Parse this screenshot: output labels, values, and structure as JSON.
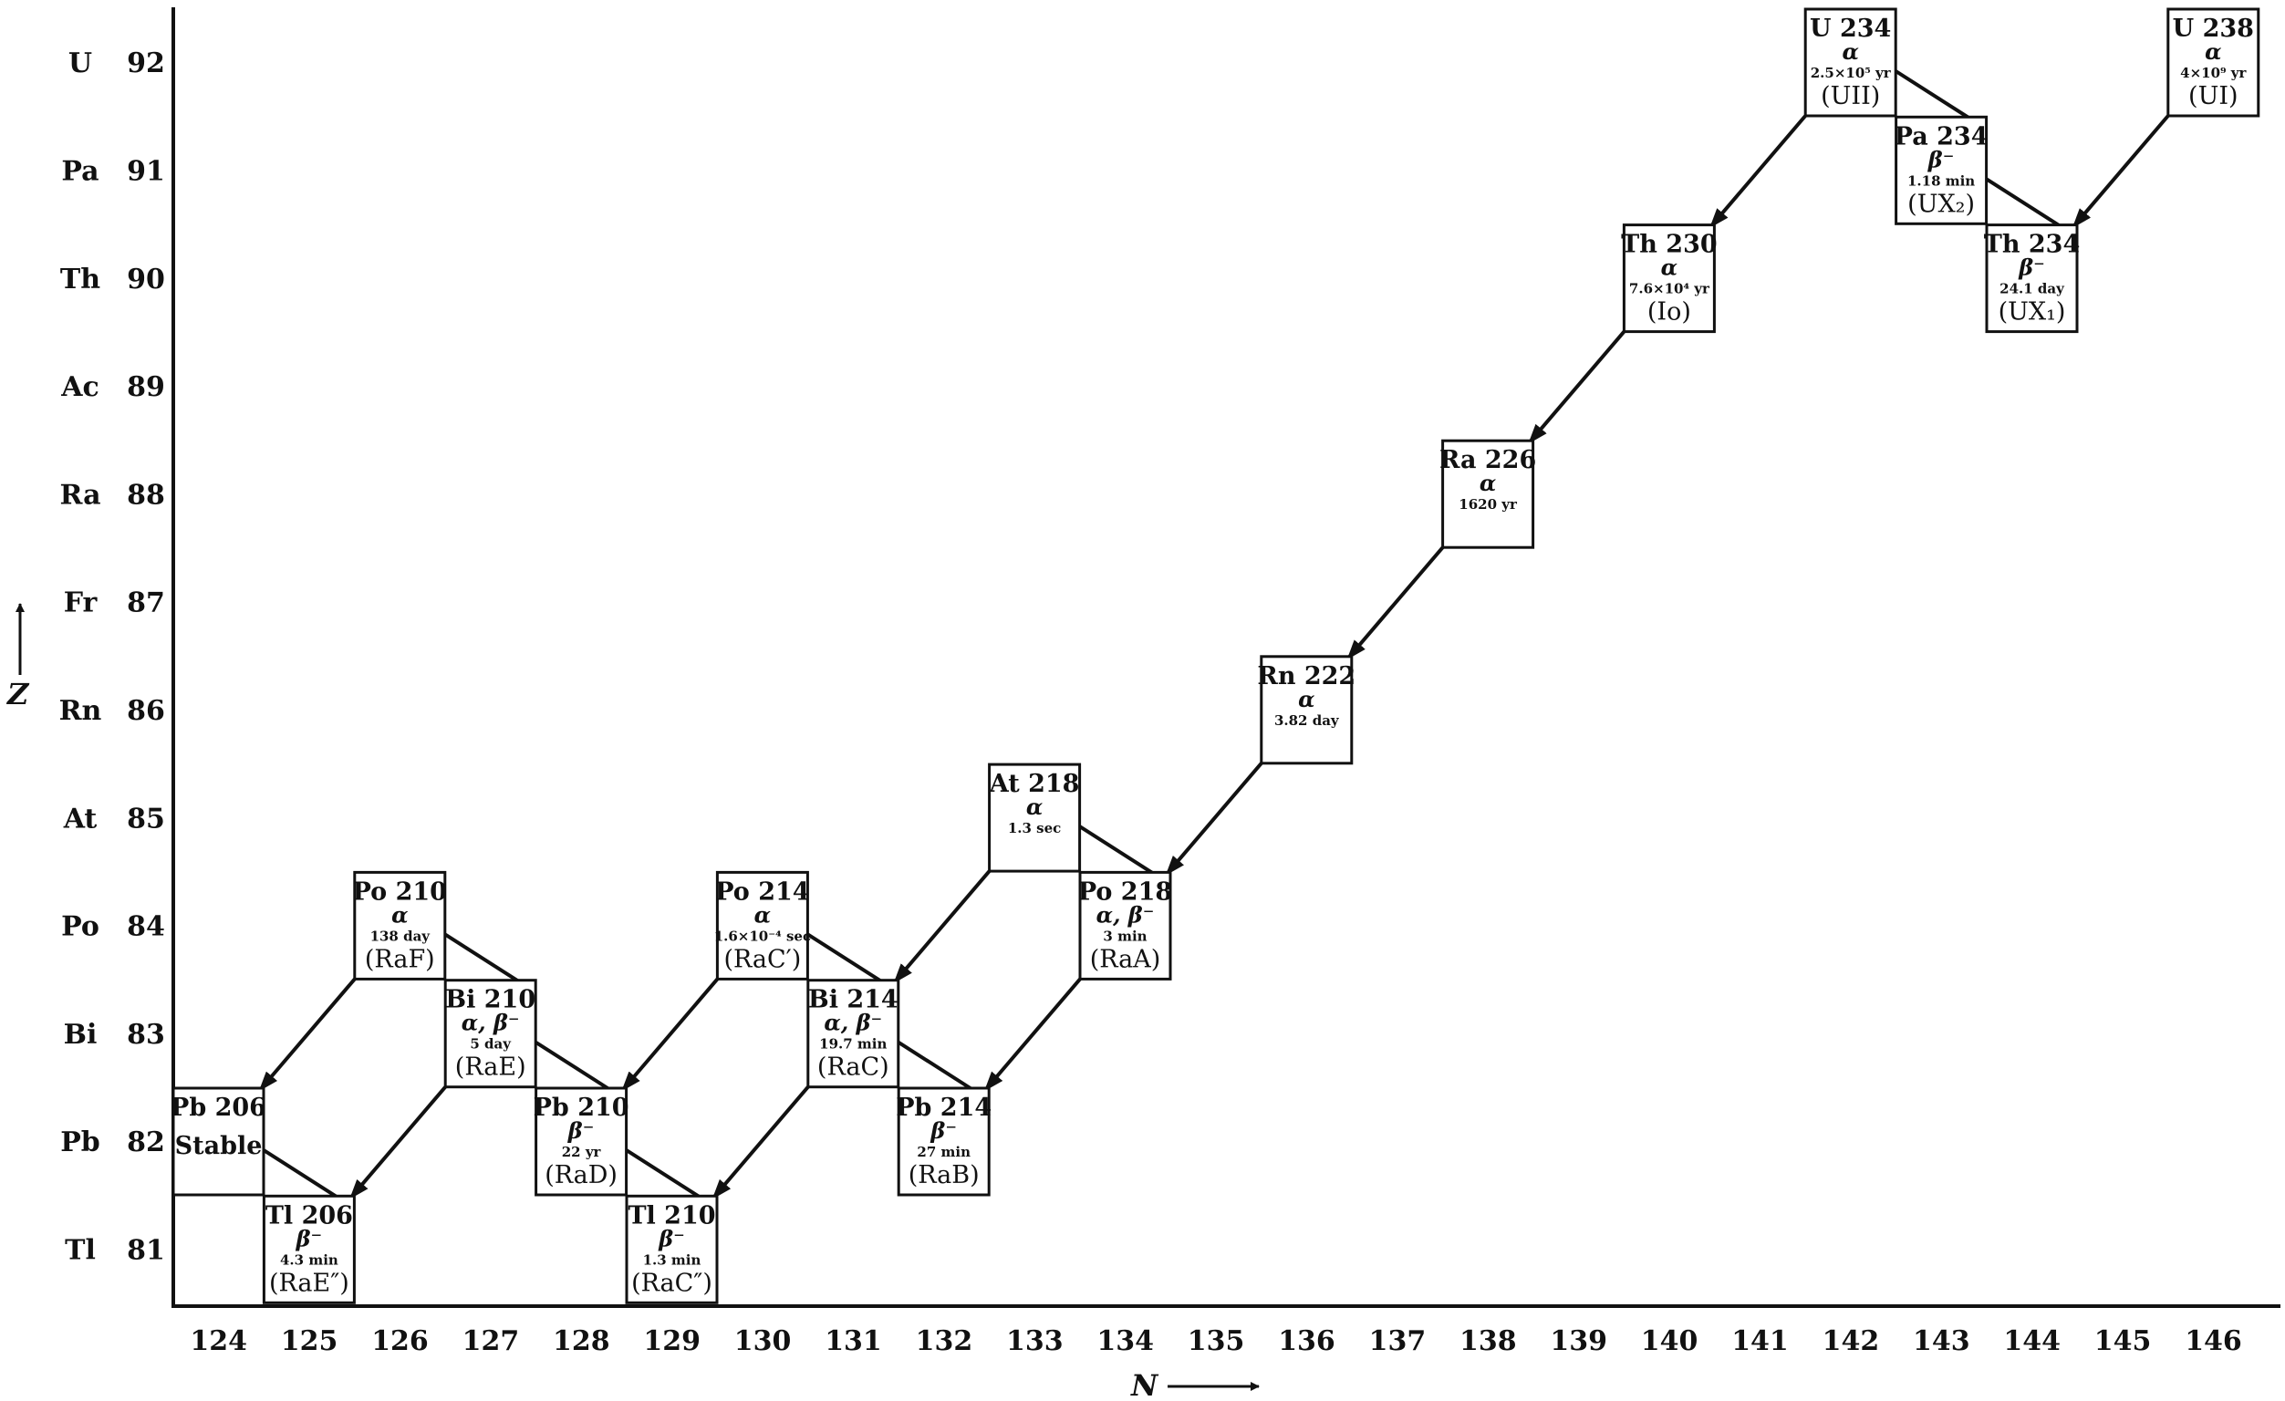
{
  "z_axis": {
    "label": "Z",
    "rows": [
      {
        "symbol": "U",
        "z": 92
      },
      {
        "symbol": "Pa",
        "z": 91
      },
      {
        "symbol": "Th",
        "z": 90
      },
      {
        "symbol": "Ac",
        "z": 89
      },
      {
        "symbol": "Ra",
        "z": 88
      },
      {
        "symbol": "Fr",
        "z": 87
      },
      {
        "symbol": "Rn",
        "z": 86
      },
      {
        "symbol": "At",
        "z": 85
      },
      {
        "symbol": "Po",
        "z": 84
      },
      {
        "symbol": "Bi",
        "z": 83
      },
      {
        "symbol": "Pb",
        "z": 82
      },
      {
        "symbol": "Tl",
        "z": 81
      }
    ]
  },
  "n_axis": {
    "label": "N",
    "ticks": [
      124,
      125,
      126,
      127,
      128,
      129,
      130,
      131,
      132,
      133,
      134,
      135,
      136,
      137,
      138,
      139,
      140,
      141,
      142,
      143,
      144,
      145,
      146
    ]
  },
  "nuclides": [
    {
      "id": "u238",
      "n": 146,
      "z": 92,
      "name": "U 238",
      "mode": "α",
      "half_life": "4×10⁹ yr",
      "old_name": "(UI)"
    },
    {
      "id": "u234",
      "n": 142,
      "z": 92,
      "name": "U 234",
      "mode": "α",
      "half_life": "2.5×10⁵ yr",
      "old_name": "(UII)"
    },
    {
      "id": "pa234",
      "n": 143,
      "z": 91,
      "name": "Pa 234",
      "mode": "β⁻",
      "half_life": "1.18 min",
      "old_name": "(UX₂)"
    },
    {
      "id": "th234",
      "n": 144,
      "z": 90,
      "name": "Th 234",
      "mode": "β⁻",
      "half_life": "24.1 day",
      "old_name": "(UX₁)"
    },
    {
      "id": "th230",
      "n": 140,
      "z": 90,
      "name": "Th 230",
      "mode": "α",
      "half_life": "7.6×10⁴ yr",
      "old_name": "(Io)"
    },
    {
      "id": "ra226",
      "n": 138,
      "z": 88,
      "name": "Ra 226",
      "mode": "α",
      "half_life": "1620 yr",
      "old_name": ""
    },
    {
      "id": "rn222",
      "n": 136,
      "z": 86,
      "name": "Rn 222",
      "mode": "α",
      "half_life": "3.82 day",
      "old_name": ""
    },
    {
      "id": "at218",
      "n": 133,
      "z": 85,
      "name": "At 218",
      "mode": "α",
      "half_life": "1.3 sec",
      "old_name": ""
    },
    {
      "id": "po218",
      "n": 134,
      "z": 84,
      "name": "Po 218",
      "mode": "α, β⁻",
      "half_life": "3 min",
      "old_name": "(RaA)"
    },
    {
      "id": "po214",
      "n": 130,
      "z": 84,
      "name": "Po 214",
      "mode": "α",
      "half_life": "1.6×10⁻⁴ sec",
      "old_name": "(RaC′)"
    },
    {
      "id": "bi214",
      "n": 131,
      "z": 83,
      "name": "Bi 214",
      "mode": "α, β⁻",
      "half_life": "19.7 min",
      "old_name": "(RaC)"
    },
    {
      "id": "pb214",
      "n": 132,
      "z": 82,
      "name": "Pb 214",
      "mode": "β⁻",
      "half_life": "27 min",
      "old_name": "(RaB)"
    },
    {
      "id": "po210",
      "n": 126,
      "z": 84,
      "name": "Po 210",
      "mode": "α",
      "half_life": "138 day",
      "old_name": "(RaF)"
    },
    {
      "id": "bi210",
      "n": 127,
      "z": 83,
      "name": "Bi 210",
      "mode": "α, β⁻",
      "half_life": "5 day",
      "old_name": "(RaE)"
    },
    {
      "id": "pb210",
      "n": 128,
      "z": 82,
      "name": "Pb 210",
      "mode": "β⁻",
      "half_life": "22 yr",
      "old_name": "(RaD)"
    },
    {
      "id": "tl210",
      "n": 129,
      "z": 81,
      "name": "Tl 210",
      "mode": "β⁻",
      "half_life": "1.3 min",
      "old_name": "(RaC″)"
    },
    {
      "id": "pb206",
      "n": 124,
      "z": 82,
      "name": "Pb 206",
      "mode": "Stable",
      "half_life": "",
      "old_name": ""
    },
    {
      "id": "tl206",
      "n": 125,
      "z": 81,
      "name": "Tl 206",
      "mode": "β⁻",
      "half_life": "4.3 min",
      "old_name": "(RaE″)"
    }
  ],
  "decays": [
    {
      "from": "u238",
      "to": "th234"
    },
    {
      "from": "th234",
      "to": "pa234"
    },
    {
      "from": "pa234",
      "to": "u234"
    },
    {
      "from": "u234",
      "to": "th230"
    },
    {
      "from": "th230",
      "to": "ra226"
    },
    {
      "from": "ra226",
      "to": "rn222"
    },
    {
      "from": "rn222",
      "to": "po218"
    },
    {
      "from": "po218",
      "to": "at218"
    },
    {
      "from": "po218",
      "to": "pb214"
    },
    {
      "from": "at218",
      "to": "bi214"
    },
    {
      "from": "pb214",
      "to": "bi214"
    },
    {
      "from": "bi214",
      "to": "po214"
    },
    {
      "from": "bi214",
      "to": "tl210"
    },
    {
      "from": "po214",
      "to": "pb210"
    },
    {
      "from": "tl210",
      "to": "pb210"
    },
    {
      "from": "pb210",
      "to": "bi210"
    },
    {
      "from": "bi210",
      "to": "po210"
    },
    {
      "from": "bi210",
      "to": "tl206"
    },
    {
      "from": "po210",
      "to": "pb206"
    },
    {
      "from": "tl206",
      "to": "pb206"
    }
  ]
}
